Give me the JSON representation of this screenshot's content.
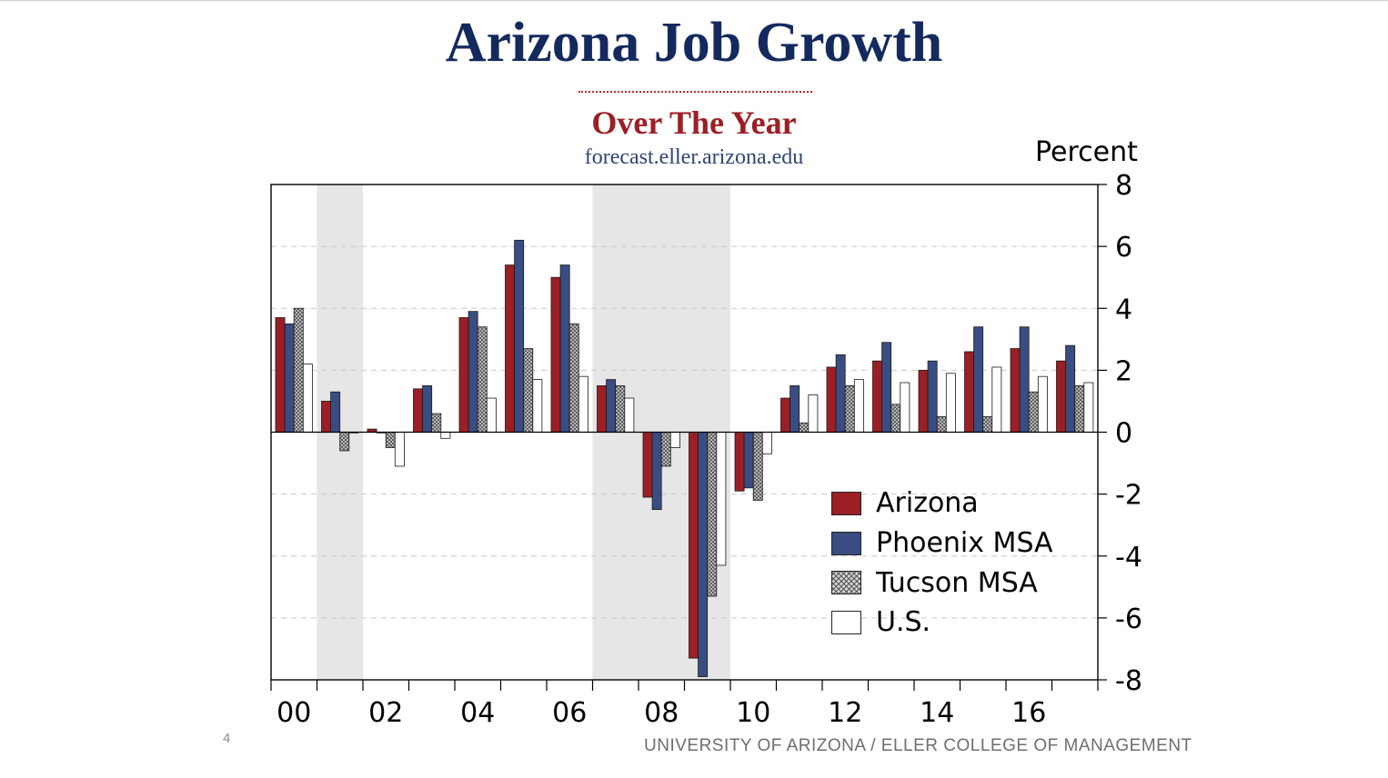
{
  "slide": {
    "title": "Arizona Job Growth",
    "subtitle": "Over The Year",
    "website": "forecast.eller.arizona.edu",
    "footer": "UNIVERSITY OF ARIZONA / ELLER COLLEGE OF MANAGEMENT",
    "slide_number": "4"
  },
  "chart_data": {
    "type": "bar",
    "y_unit_label": "Percent",
    "ylim": [
      -8,
      8
    ],
    "yticks": [
      8,
      6,
      4,
      2,
      0,
      -2,
      -4,
      -6,
      -8
    ],
    "years": [
      2000,
      2001,
      2002,
      2003,
      2004,
      2005,
      2006,
      2007,
      2008,
      2009,
      2010,
      2011,
      2012,
      2013,
      2014,
      2015,
      2016,
      2017
    ],
    "xtick_labels": [
      "00",
      "02",
      "04",
      "06",
      "08",
      "10",
      "12",
      "14",
      "16"
    ],
    "recession_shading": [
      [
        2001,
        2001
      ],
      [
        2007,
        2009
      ]
    ],
    "grid": "dashed horizontal",
    "legend_position": "lower-right",
    "series": [
      {
        "name": "Arizona",
        "color": "#9c1f25",
        "pattern": "solid",
        "values": [
          3.7,
          1.0,
          0.1,
          1.4,
          3.7,
          5.4,
          5.0,
          1.5,
          -2.1,
          -7.3,
          -1.9,
          1.1,
          2.1,
          2.3,
          2.0,
          2.6,
          2.7,
          2.3
        ]
      },
      {
        "name": "Phoenix MSA",
        "color": "#3a4d82",
        "pattern": "solid",
        "values": [
          3.5,
          1.3,
          0.0,
          1.5,
          3.9,
          6.2,
          5.4,
          1.7,
          -2.5,
          -7.9,
          -1.8,
          1.5,
          2.5,
          2.9,
          2.3,
          3.4,
          3.4,
          2.8
        ]
      },
      {
        "name": "Tucson MSA",
        "color": "#9a9a9a",
        "pattern": "crosshatch",
        "values": [
          4.0,
          -0.6,
          -0.5,
          0.6,
          3.4,
          2.7,
          3.5,
          1.5,
          -1.1,
          -5.3,
          -2.2,
          0.3,
          1.5,
          0.9,
          0.5,
          0.5,
          1.3,
          1.5
        ]
      },
      {
        "name": "U.S.",
        "color": "#ffffff",
        "pattern": "solid",
        "values": [
          2.2,
          0.0,
          -1.1,
          -0.2,
          1.1,
          1.7,
          1.8,
          1.1,
          -0.5,
          -4.3,
          -0.7,
          1.2,
          1.7,
          1.6,
          1.9,
          2.1,
          1.8,
          1.6
        ]
      }
    ]
  }
}
